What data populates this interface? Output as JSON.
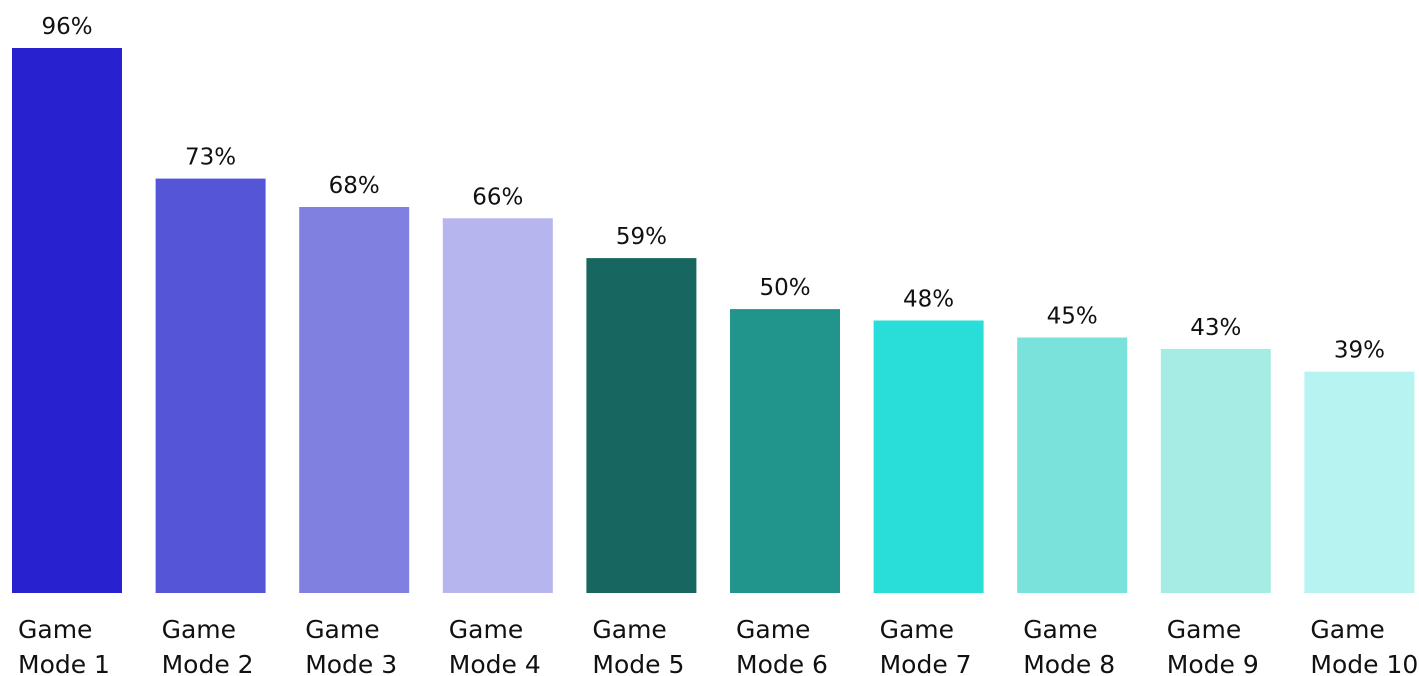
{
  "chart_data": {
    "type": "bar",
    "categories": [
      [
        "Game",
        "Mode 1"
      ],
      [
        "Game",
        "Mode 2"
      ],
      [
        "Game",
        "Mode 3"
      ],
      [
        "Game",
        "Mode 4"
      ],
      [
        "Game",
        "Mode 5"
      ],
      [
        "Game",
        "Mode 6"
      ],
      [
        "Game",
        "Mode 7"
      ],
      [
        "Game",
        "Mode 8"
      ],
      [
        "Game",
        "Mode 9"
      ],
      [
        "Game",
        "Mode 10"
      ]
    ],
    "values": [
      96,
      73,
      68,
      66,
      59,
      50,
      48,
      45,
      43,
      39
    ],
    "value_labels": [
      "96%",
      "73%",
      "68%",
      "66%",
      "59%",
      "50%",
      "48%",
      "45%",
      "43%",
      "39%"
    ],
    "colors": [
      "#2721cf",
      "#5556d7",
      "#8080e1",
      "#b6b5ed",
      "#17665f",
      "#21948b",
      "#29ddd8",
      "#7be2db",
      "#a6ece5",
      "#b6f3f1"
    ],
    "ylim": [
      0,
      96
    ],
    "grid": false,
    "legend": "none"
  }
}
